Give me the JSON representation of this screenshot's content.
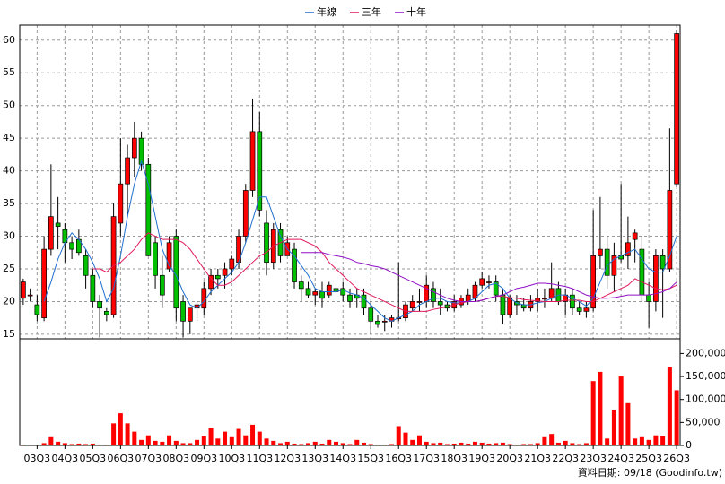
{
  "chart_data": {
    "type": "candlestick",
    "categories": [
      null,
      null,
      "03Q3",
      null,
      null,
      null,
      "04Q3",
      null,
      null,
      null,
      "05Q3",
      null,
      null,
      null,
      "06Q3",
      null,
      null,
      null,
      "07Q3",
      null,
      null,
      null,
      "08Q3",
      null,
      null,
      null,
      "09Q3",
      null,
      null,
      null,
      "10Q3",
      null,
      null,
      null,
      "11Q3",
      null,
      null,
      null,
      "12Q3",
      null,
      null,
      null,
      "13Q3",
      null,
      null,
      null,
      "14Q3",
      null,
      null,
      null,
      "15Q3",
      null,
      null,
      null,
      "16Q3",
      null,
      null,
      null,
      "17Q3",
      null,
      null,
      null,
      "18Q3",
      null,
      null,
      null,
      "19Q3",
      null,
      null,
      null,
      "20Q3",
      null,
      null,
      null,
      "21Q3",
      null,
      null,
      null,
      "22Q3",
      null,
      null,
      null,
      "23Q3",
      null,
      null,
      null,
      "24Q3",
      null,
      null,
      null,
      "25Q3",
      null,
      null,
      null,
      "26Q3"
    ],
    "open": [
      20.5,
      21,
      19.5,
      17.5,
      28,
      32,
      31,
      29,
      29.5,
      27,
      24,
      20,
      18.5,
      18,
      32,
      38,
      42,
      45,
      41,
      29,
      24,
      25,
      30,
      20,
      17,
      19,
      19,
      22,
      24,
      24,
      25,
      26,
      30,
      37,
      46,
      32,
      26,
      31,
      27,
      28,
      23,
      22,
      21,
      21.5,
      21,
      22,
      22,
      21,
      21,
      21,
      19,
      17,
      17,
      17,
      17.5,
      17.5,
      19,
      20,
      20,
      22,
      20,
      19.5,
      19,
      19.5,
      20,
      20.5,
      22.5,
      23,
      23,
      21,
      18,
      20,
      19.5,
      19,
      20,
      20.5,
      20.5,
      22,
      20,
      21,
      19,
      18.5,
      19,
      27,
      28,
      24,
      27,
      27,
      29.5,
      28,
      21,
      20,
      27,
      25,
      38
    ],
    "high": [
      23.5,
      22,
      21,
      30,
      41,
      36,
      32,
      30,
      31,
      28,
      25,
      21,
      19,
      35,
      45,
      44,
      47.5,
      46,
      42,
      30,
      27,
      30,
      31,
      21,
      19,
      20,
      23,
      25,
      25,
      26,
      27,
      31,
      38,
      51,
      49,
      34,
      32,
      32,
      30,
      29,
      24,
      23,
      22,
      23,
      23,
      23,
      23,
      22,
      22,
      22,
      20,
      18,
      18,
      18,
      26,
      20,
      21,
      22,
      24,
      23,
      22,
      20,
      21,
      21,
      22,
      23,
      24.5,
      24,
      24,
      22,
      21,
      21,
      20.5,
      21,
      22,
      22,
      26,
      23,
      22,
      22,
      20,
      20,
      34,
      36,
      30,
      29,
      38,
      33,
      31,
      30,
      23,
      28,
      28,
      46.5,
      61.5
    ],
    "low": [
      19.5,
      20,
      17,
      17,
      27,
      28,
      26,
      26.5,
      27,
      22,
      19,
      14.5,
      17,
      17.5,
      30,
      33,
      39,
      40,
      27,
      22,
      19,
      24.5,
      17,
      14.5,
      15,
      17,
      18,
      21,
      22,
      22,
      24,
      25,
      29,
      36,
      33,
      24,
      25,
      26,
      27,
      22,
      20,
      20.5,
      19.5,
      19,
      20.5,
      20,
      20,
      19,
      19,
      18,
      15,
      16,
      15.5,
      16,
      17,
      17,
      18.5,
      18.5,
      19,
      19,
      18,
      18.5,
      18.5,
      19,
      19.5,
      20,
      22,
      22,
      20,
      16.5,
      17.5,
      18,
      18.5,
      18.5,
      18.5,
      19,
      20,
      19.5,
      18,
      18,
      18,
      17.5,
      18.5,
      25,
      22,
      21.5,
      26,
      25,
      26,
      20,
      16,
      18.5,
      17.5,
      24.5,
      37.5
    ],
    "close": [
      23,
      21,
      18,
      28,
      33,
      31.5,
      29,
      28,
      27.5,
      24,
      20,
      19,
      18,
      33,
      38,
      42,
      45,
      41,
      27,
      24,
      21,
      29,
      19,
      17,
      19,
      19.5,
      22,
      24,
      23.5,
      25,
      26.5,
      30,
      37,
      46,
      34,
      26,
      31,
      27,
      29,
      23,
      22,
      21,
      21.5,
      20.5,
      22.5,
      21.5,
      21,
      20,
      20.5,
      19,
      17,
      16.5,
      17,
      17.5,
      17.5,
      19.5,
      20,
      20,
      22.5,
      20,
      19.5,
      19,
      20,
      20.5,
      21,
      22.5,
      23.5,
      23,
      21,
      18,
      20.5,
      19.5,
      19,
      20,
      20.5,
      20.5,
      22,
      20,
      21,
      19,
      18.5,
      19,
      27,
      28,
      24,
      27,
      26.5,
      29,
      30.5,
      21,
      20,
      27,
      25,
      37,
      61
    ],
    "volume": [
      2000,
      1000,
      1000,
      5000,
      18000,
      8000,
      5000,
      3000,
      4000,
      3000,
      4000,
      2000,
      2000,
      48000,
      70000,
      48000,
      30000,
      12000,
      22000,
      10000,
      8000,
      22000,
      10000,
      5000,
      5000,
      12000,
      20000,
      38000,
      15000,
      30000,
      18000,
      36000,
      22000,
      45000,
      30000,
      15000,
      10000,
      5000,
      8000,
      4000,
      3000,
      5000,
      8000,
      4000,
      12000,
      8000,
      5000,
      3000,
      12000,
      6000,
      3000,
      2000,
      2000,
      3000,
      42000,
      28000,
      12000,
      22000,
      8000,
      5000,
      6000,
      3000,
      4000,
      6000,
      4000,
      8000,
      6000,
      4000,
      5000,
      6000,
      3000,
      2000,
      3000,
      3000,
      5000,
      18000,
      25000,
      6000,
      10000,
      5000,
      3000,
      5000,
      140000,
      160000,
      15000,
      78000,
      150000,
      92000,
      15000,
      18000,
      12000,
      22000,
      20000,
      170000,
      120000
    ],
    "series": [
      {
        "name": "年線",
        "color": "#1f6fd0",
        "values": [
          null,
          null,
          null,
          20,
          23,
          26.5,
          29,
          30.5,
          29.5,
          28,
          26,
          23.5,
          20,
          22,
          27,
          33,
          38,
          41.5,
          38,
          33,
          28,
          25.5,
          24,
          21.5,
          19.5,
          19,
          20,
          21.5,
          22.5,
          23.5,
          24.5,
          26,
          29,
          32.5,
          36,
          36,
          33,
          30,
          28,
          27,
          25.5,
          24,
          22,
          21.5,
          21.5,
          21.5,
          21.8,
          21.3,
          21,
          20.5,
          19.5,
          18.5,
          17.5,
          17,
          17.5,
          18,
          18.5,
          19.5,
          20,
          20.5,
          20.5,
          20,
          19.8,
          19.8,
          20,
          20.5,
          21.5,
          22.5,
          22.8,
          22,
          20.5,
          19.8,
          19.5,
          19.5,
          19.8,
          20,
          20.5,
          21,
          21,
          20.5,
          20,
          19.3,
          20.5,
          23,
          25.5,
          26.5,
          27,
          27.5,
          28,
          26.5,
          25,
          24.5,
          24.5,
          27,
          30
        ]
      },
      {
        "name": "三年",
        "color": "#e0185a",
        "values": [
          null,
          null,
          null,
          null,
          null,
          null,
          null,
          null,
          null,
          null,
          25,
          25,
          24.5,
          25.5,
          26,
          27,
          28,
          29.5,
          30.5,
          30,
          29.5,
          29.5,
          29.5,
          29,
          28,
          26.5,
          25,
          23.5,
          22.5,
          22.5,
          23,
          24,
          25,
          26,
          27,
          27.5,
          28.5,
          29,
          29.5,
          29.5,
          29.5,
          29,
          28.5,
          27.5,
          26,
          25,
          24,
          23,
          22,
          21.5,
          21,
          20.5,
          20,
          19.5,
          19,
          18.5,
          18.5,
          18.5,
          18.5,
          18.8,
          19,
          19.2,
          19.5,
          19.8,
          20,
          20,
          20.2,
          20.5,
          20.8,
          20.8,
          20.6,
          20.5,
          20.3,
          20.2,
          20.1,
          20,
          20,
          20,
          20.2,
          20.2,
          20.2,
          20,
          20,
          20.5,
          21,
          21.5,
          22,
          22.5,
          23.5,
          23,
          22.5,
          22,
          21.8,
          22,
          22.5
        ]
      },
      {
        "name": "十年",
        "color": "#9010c8",
        "values": [
          null,
          null,
          null,
          null,
          null,
          null,
          null,
          null,
          null,
          null,
          null,
          null,
          null,
          null,
          null,
          null,
          null,
          null,
          null,
          null,
          null,
          null,
          null,
          null,
          null,
          null,
          null,
          null,
          null,
          null,
          null,
          null,
          null,
          null,
          null,
          null,
          null,
          null,
          null,
          null,
          27.5,
          27.5,
          27.5,
          27.5,
          27.2,
          27,
          26.8,
          26.5,
          26,
          25.8,
          25.5,
          25.3,
          25,
          24.5,
          24,
          23.5,
          23,
          22.5,
          22,
          21.5,
          21,
          20.5,
          20.2,
          20,
          20,
          20,
          20.2,
          20.5,
          20.8,
          21,
          21.5,
          22,
          22.2,
          22.5,
          22.8,
          22.8,
          22.7,
          22.5,
          22.3,
          22,
          21.5,
          21,
          20.7,
          20.5,
          20.5,
          20.6,
          20.8,
          21,
          21,
          21,
          21,
          21.2,
          21.5,
          22,
          23
        ]
      }
    ],
    "up_color": "#ff0000",
    "down_color": "#00c000",
    "volume_color": "#ff0000",
    "ylim": [
      14.3,
      62.3
    ],
    "yticks": [
      15,
      20,
      25,
      30,
      35,
      40,
      45,
      50,
      55,
      60
    ],
    "y2lim": [
      0,
      232000
    ],
    "y2ticks": [
      0,
      {
        "value": 50000,
        "label": "50,000"
      },
      {
        "value": 100000,
        "label": "100,000"
      },
      {
        "value": 150000,
        "label": "150,000"
      },
      {
        "value": 200000,
        "label": "200,000"
      }
    ],
    "grid": true,
    "legend": "top",
    "source": "資料日期: 09/18 (Goodinfo.tw)"
  }
}
